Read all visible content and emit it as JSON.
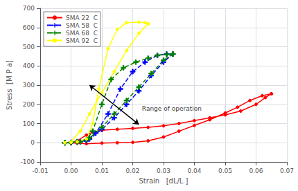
{
  "chart_data": {
    "type": "line",
    "xlabel": "Strain   [dL/L ]",
    "ylabel": "Stress  [M P a]",
    "xlim": [
      -0.01,
      0.07
    ],
    "ylim": [
      -100,
      700
    ],
    "xticks": [
      -0.01,
      {
        "value": 0.0,
        "label": "0.00"
      },
      0.01,
      0.02,
      0.03,
      0.04,
      0.05,
      0.06,
      0.07
    ],
    "yticks": [
      -100,
      0,
      100,
      200,
      300,
      400,
      500,
      600,
      700
    ],
    "grid": true,
    "legend": "upper left",
    "series": [
      {
        "name": "SMA 22  C",
        "color": "red",
        "line_style": "solid",
        "marker": "circle",
        "x": [
          -0.002,
          0.0,
          0.002,
          0.005,
          0.007,
          0.01,
          0.015,
          0.02,
          0.025,
          0.03,
          0.035,
          0.04,
          0.045,
          0.05,
          0.055,
          0.06,
          0.063,
          0.065,
          0.065,
          0.062,
          0.058,
          0.054,
          0.05,
          0.045,
          0.04,
          0.035,
          0.03,
          0.025,
          0.02,
          0.015,
          0.01,
          0.005,
          0.002,
          0.0,
          -0.002
        ],
        "values": [
          0,
          2,
          10,
          40,
          55,
          65,
          70,
          75,
          80,
          88,
          100,
          115,
          130,
          145,
          165,
          200,
          235,
          255,
          255,
          245,
          220,
          185,
          155,
          120,
          90,
          60,
          30,
          10,
          2,
          0,
          -2,
          -5,
          -3,
          0,
          0
        ]
      },
      {
        "name": "SMA 58  C",
        "color": "blue",
        "line_style": "dashed",
        "marker": "plus",
        "x": [
          -0.002,
          0.0,
          0.002,
          0.005,
          0.008,
          0.012,
          0.016,
          0.02,
          0.024,
          0.028,
          0.031,
          0.033,
          0.033,
          0.03,
          0.026,
          0.022,
          0.018,
          0.014,
          0.01,
          0.006,
          0.003,
          0.0,
          -0.002
        ],
        "values": [
          0,
          2,
          5,
          10,
          50,
          150,
          280,
          370,
          420,
          455,
          462,
          462,
          462,
          420,
          350,
          270,
          200,
          130,
          70,
          20,
          5,
          0,
          0
        ]
      },
      {
        "name": "SMA 68  C",
        "color": "green",
        "line_style": "dashed",
        "marker": "plus",
        "x": [
          -0.002,
          0.0,
          0.002,
          0.005,
          0.007,
          0.01,
          0.013,
          0.017,
          0.021,
          0.025,
          0.028,
          0.031,
          0.033,
          0.033,
          0.03,
          0.026,
          0.022,
          0.018,
          0.014,
          0.01,
          0.006,
          0.003,
          0.0,
          -0.002
        ],
        "values": [
          0,
          2,
          5,
          15,
          60,
          200,
          330,
          390,
          420,
          440,
          455,
          460,
          462,
          462,
          430,
          360,
          290,
          220,
          150,
          80,
          25,
          5,
          0,
          0
        ]
      },
      {
        "name": "SMA 92  C",
        "color": "yellow",
        "line_style": "solid",
        "marker": "circle",
        "x": [
          -0.002,
          0.0,
          0.002,
          0.005,
          0.007,
          0.009,
          0.012,
          0.015,
          0.018,
          0.022,
          0.024,
          0.025,
          0.025,
          0.022,
          0.018,
          0.014,
          0.01,
          0.006,
          0.003,
          0.0,
          -0.002
        ],
        "values": [
          0,
          2,
          5,
          20,
          100,
          280,
          490,
          590,
          625,
          628,
          625,
          620,
          620,
          570,
          480,
          370,
          260,
          150,
          60,
          5,
          0
        ]
      }
    ],
    "annotations": [
      {
        "text": "Range of operation",
        "x": 0.023,
        "y": 160
      }
    ],
    "arrows": [
      {
        "from": [
          0.006,
          300
        ],
        "to": [
          0.022,
          95
        ]
      }
    ]
  }
}
